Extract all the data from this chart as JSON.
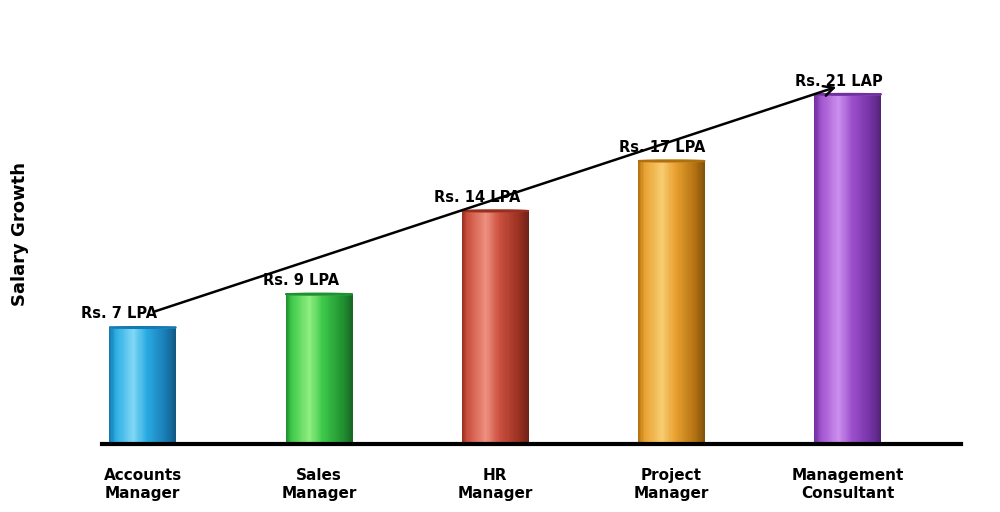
{
  "categories": [
    "Accounts\nManager",
    "Sales\nManager",
    "HR\nManager",
    "Project\nManager",
    "Management\nConsultant"
  ],
  "values": [
    7,
    9,
    14,
    17,
    21
  ],
  "labels": [
    "Rs. 7 LPA",
    "Rs. 9 LPA",
    "Rs. 14 LPA",
    "Rs. 17 LPA",
    "Rs. 21 LAP"
  ],
  "colors_main": [
    "#29ABE2",
    "#3DC84A",
    "#CC5040",
    "#E8A030",
    "#9E50CC"
  ],
  "colors_light": [
    "#80D8F5",
    "#90EE80",
    "#EE9080",
    "#F8CC70",
    "#CC90EE"
  ],
  "colors_dark": [
    "#1878B0",
    "#209030",
    "#983020",
    "#B07010",
    "#7030A0"
  ],
  "colors_top_center": [
    "#B8E8F8",
    "#C0F8B0",
    "#F8C0B8",
    "#FBE0A0",
    "#E8C0F8"
  ],
  "ylabel": "Salary Growth",
  "background_color": "#FFFFFF",
  "bar_width": 0.38,
  "x_positions": [
    1,
    2,
    3,
    4,
    5
  ],
  "ylim_max": 26,
  "n_strips": 60
}
